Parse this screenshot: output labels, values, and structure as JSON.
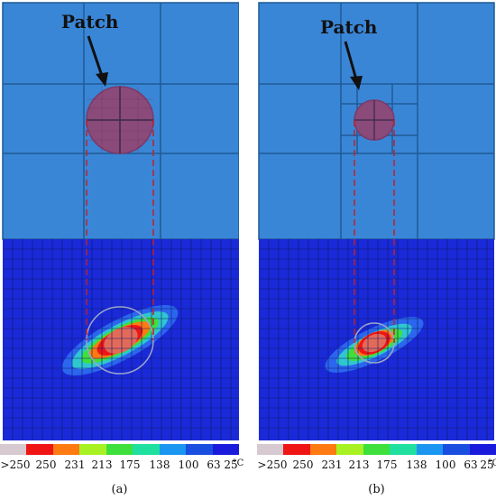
{
  "panels": [
    {
      "caption": "(a)",
      "patch_label": "Patch"
    },
    {
      "caption": "(b)",
      "patch_label": "Patch"
    }
  ],
  "legend": {
    "ticks": [
      ">250",
      "250",
      "231",
      "213",
      "175",
      "138",
      "100",
      "63",
      "25",
      "°C"
    ],
    "colors": [
      "#d6c9cf",
      "#f01515",
      "#ff7a10",
      "#a8f224",
      "#3ee03c",
      "#20e0a0",
      "#1a96f0",
      "#1a4ee0",
      "#1a1adc"
    ]
  },
  "colors": {
    "mesh_coarse_bg": "#3a86d6",
    "mesh_line": "#1e5a96",
    "thermal_bg": "#1a2ad8",
    "patch_fill": "#8a4a7a",
    "dashed_line": "#c0202a"
  }
}
